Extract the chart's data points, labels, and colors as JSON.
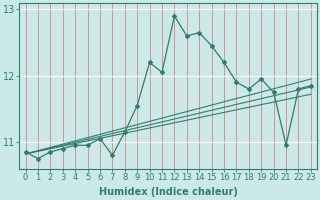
{
  "x_ticks": [
    0,
    1,
    2,
    3,
    4,
    5,
    6,
    7,
    8,
    9,
    10,
    11,
    12,
    13,
    14,
    15,
    16,
    17,
    18,
    19,
    20,
    21,
    22,
    23
  ],
  "main_line_x": [
    0,
    1,
    2,
    3,
    4,
    5,
    6,
    7,
    8,
    9,
    10,
    11,
    12,
    13,
    14,
    15,
    16,
    17,
    18,
    19,
    20,
    21,
    22,
    23
  ],
  "main_line_y": [
    10.85,
    10.75,
    10.85,
    10.9,
    10.95,
    10.95,
    11.05,
    10.8,
    11.15,
    11.55,
    12.2,
    12.05,
    12.9,
    12.6,
    12.65,
    12.45,
    12.2,
    11.9,
    11.8,
    11.95,
    11.75,
    10.95,
    11.8,
    11.85
  ],
  "trend_line1_x": [
    0,
    23
  ],
  "trend_line1_y": [
    10.82,
    11.95
  ],
  "trend_line2_x": [
    0,
    23
  ],
  "trend_line2_y": [
    10.82,
    11.72
  ],
  "trend_line3_x": [
    0,
    23
  ],
  "trend_line3_y": [
    10.82,
    11.83
  ],
  "ylim": [
    10.6,
    13.1
  ],
  "yticks": [
    11,
    12,
    13
  ],
  "xlabel": "Humidex (Indice chaleur)",
  "line_color": "#2E7E6E",
  "bg_color": "#cce9e9",
  "grid_color_v": "#e08080",
  "grid_color_h": "#ffffff",
  "xlabel_fontsize": 7,
  "tick_fontsize": 6
}
